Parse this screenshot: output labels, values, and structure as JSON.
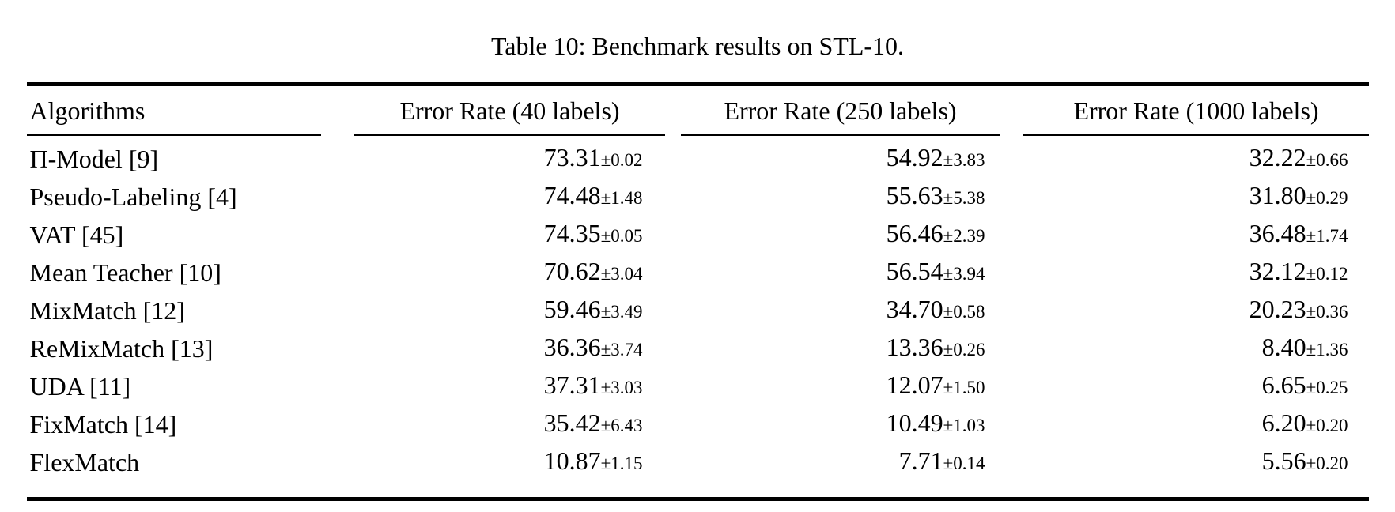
{
  "chart_data": {
    "type": "table",
    "title": "Table 10: Benchmark results on STL-10.",
    "columns": [
      "Algorithms",
      "Error Rate (40 labels)",
      "Error Rate (250 labels)",
      "Error Rate (1000 labels)"
    ],
    "rows": [
      {
        "algorithm": "Π-Model [9]",
        "cells": [
          {
            "mean": "73.31",
            "pm": "±0.02"
          },
          {
            "mean": "54.92",
            "pm": "±3.83"
          },
          {
            "mean": "32.22",
            "pm": "±0.66"
          }
        ]
      },
      {
        "algorithm": "Pseudo-Labeling [4]",
        "cells": [
          {
            "mean": "74.48",
            "pm": "±1.48"
          },
          {
            "mean": "55.63",
            "pm": "±5.38"
          },
          {
            "mean": "31.80",
            "pm": "±0.29"
          }
        ]
      },
      {
        "algorithm": "VAT [45]",
        "cells": [
          {
            "mean": "74.35",
            "pm": "±0.05"
          },
          {
            "mean": "56.46",
            "pm": "±2.39"
          },
          {
            "mean": "36.48",
            "pm": "±1.74"
          }
        ]
      },
      {
        "algorithm": "Mean Teacher [10]",
        "cells": [
          {
            "mean": "70.62",
            "pm": "±3.04"
          },
          {
            "mean": "56.54",
            "pm": "±3.94"
          },
          {
            "mean": "32.12",
            "pm": "±0.12"
          }
        ]
      },
      {
        "algorithm": "MixMatch [12]",
        "cells": [
          {
            "mean": "59.46",
            "pm": "±3.49"
          },
          {
            "mean": "34.70",
            "pm": "±0.58"
          },
          {
            "mean": "20.23",
            "pm": "±0.36"
          }
        ]
      },
      {
        "algorithm": "ReMixMatch [13]",
        "cells": [
          {
            "mean": "36.36",
            "pm": "±3.74"
          },
          {
            "mean": "13.36",
            "pm": "±0.26"
          },
          {
            "mean": "8.40",
            "pm": "±1.36"
          }
        ]
      },
      {
        "algorithm": "UDA [11]",
        "cells": [
          {
            "mean": "37.31",
            "pm": "±3.03"
          },
          {
            "mean": "12.07",
            "pm": "±1.50"
          },
          {
            "mean": "6.65",
            "pm": "±0.25"
          }
        ]
      },
      {
        "algorithm": "FixMatch [14]",
        "cells": [
          {
            "mean": "35.42",
            "pm": "±6.43"
          },
          {
            "mean": "10.49",
            "pm": "±1.03"
          },
          {
            "mean": "6.20",
            "pm": "±0.20"
          }
        ]
      },
      {
        "algorithm": "FlexMatch",
        "cells": [
          {
            "mean": "10.87",
            "pm": "±1.15"
          },
          {
            "mean": "7.71",
            "pm": "±0.14"
          },
          {
            "mean": "5.56",
            "pm": "±0.20"
          }
        ]
      }
    ],
    "colors": {
      "text": "#000000",
      "rule": "#000000",
      "background": "#ffffff"
    },
    "layout": {
      "caption_position": "top-center",
      "value_alignment": "right",
      "rule_style": "booktabs"
    }
  }
}
